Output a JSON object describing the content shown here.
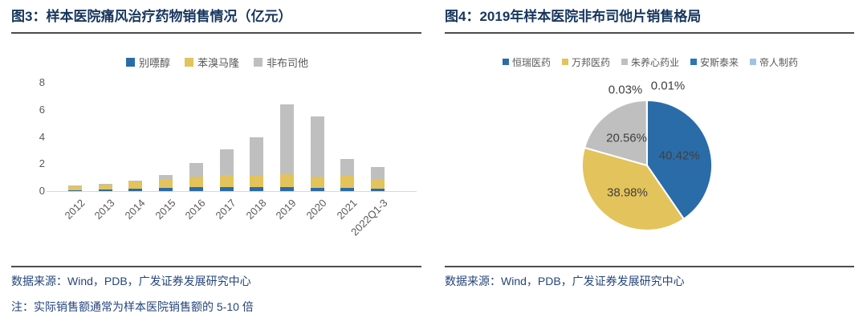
{
  "palette": {
    "blue": "#2A6CA8",
    "yellow": "#E3C35B",
    "gray": "#BFBFBF",
    "dark_blue": "#2E75B6",
    "light_blue": "#9DC3E6",
    "navy": "#17365D",
    "axis_text": "#595959",
    "pie_label_text": "#404040",
    "rule": "#4D4D4D",
    "baseline": "#D9D9D9"
  },
  "left_figure": {
    "caption": "图3：样本医院痛风治疗药物销售情况（亿元）",
    "source": "数据来源：Wind，PDB，广发证券发展研究中心",
    "note": "注：实际销售额通常为样本医院销售额的 5-10 倍"
  },
  "right_figure": {
    "caption": "图4：2019年样本医院非布司他片销售格局",
    "source": "数据来源：Wind，PDB，广发证券发展研究中心"
  },
  "chart_data": [
    {
      "type": "bar",
      "stacked": true,
      "title": "样本医院痛风治疗药物销售情况（亿元）",
      "categories": [
        "2012",
        "2013",
        "2014",
        "2015",
        "2016",
        "2017",
        "2018",
        "2019",
        "2020",
        "2021",
        "2022Q1-3"
      ],
      "series": [
        {
          "name": "别嘌醇",
          "color_key": "blue",
          "values": [
            0.08,
            0.12,
            0.15,
            0.22,
            0.3,
            0.28,
            0.28,
            0.27,
            0.22,
            0.25,
            0.18
          ]
        },
        {
          "name": "苯溴马隆",
          "color_key": "yellow",
          "values": [
            0.32,
            0.4,
            0.55,
            0.68,
            0.75,
            0.88,
            0.82,
            0.95,
            0.85,
            0.88,
            0.65
          ]
        },
        {
          "name": "非布司他",
          "color_key": "gray",
          "values": [
            0.03,
            0.03,
            0.1,
            0.3,
            1.0,
            1.9,
            2.85,
            5.2,
            4.45,
            1.22,
            0.97
          ]
        }
      ],
      "totals_approx": [
        0.43,
        0.55,
        0.8,
        1.2,
        2.05,
        3.06,
        3.95,
        6.42,
        5.52,
        2.35,
        1.8
      ],
      "xlabel": "",
      "ylabel": "",
      "ylim": [
        0,
        8
      ],
      "yticks": [
        0,
        2,
        4,
        6,
        8
      ],
      "grid": false,
      "legend_position": "top"
    },
    {
      "type": "pie",
      "title": "2019年样本医院非布司他片销售格局",
      "labels": [
        "恒瑞医药",
        "万邦医药",
        "朱养心药业",
        "安斯泰来",
        "帝人制药"
      ],
      "values": [
        40.42,
        38.98,
        20.56,
        0.03,
        0.01
      ],
      "value_labels": [
        "40.42%",
        "38.98%",
        "20.56%",
        "0.03%",
        "0.01%"
      ],
      "color_keys": [
        "blue",
        "yellow",
        "gray",
        "dark_blue",
        "light_blue"
      ],
      "start_angle_deg": 0,
      "direction": "clockwise",
      "legend_position": "top"
    }
  ]
}
